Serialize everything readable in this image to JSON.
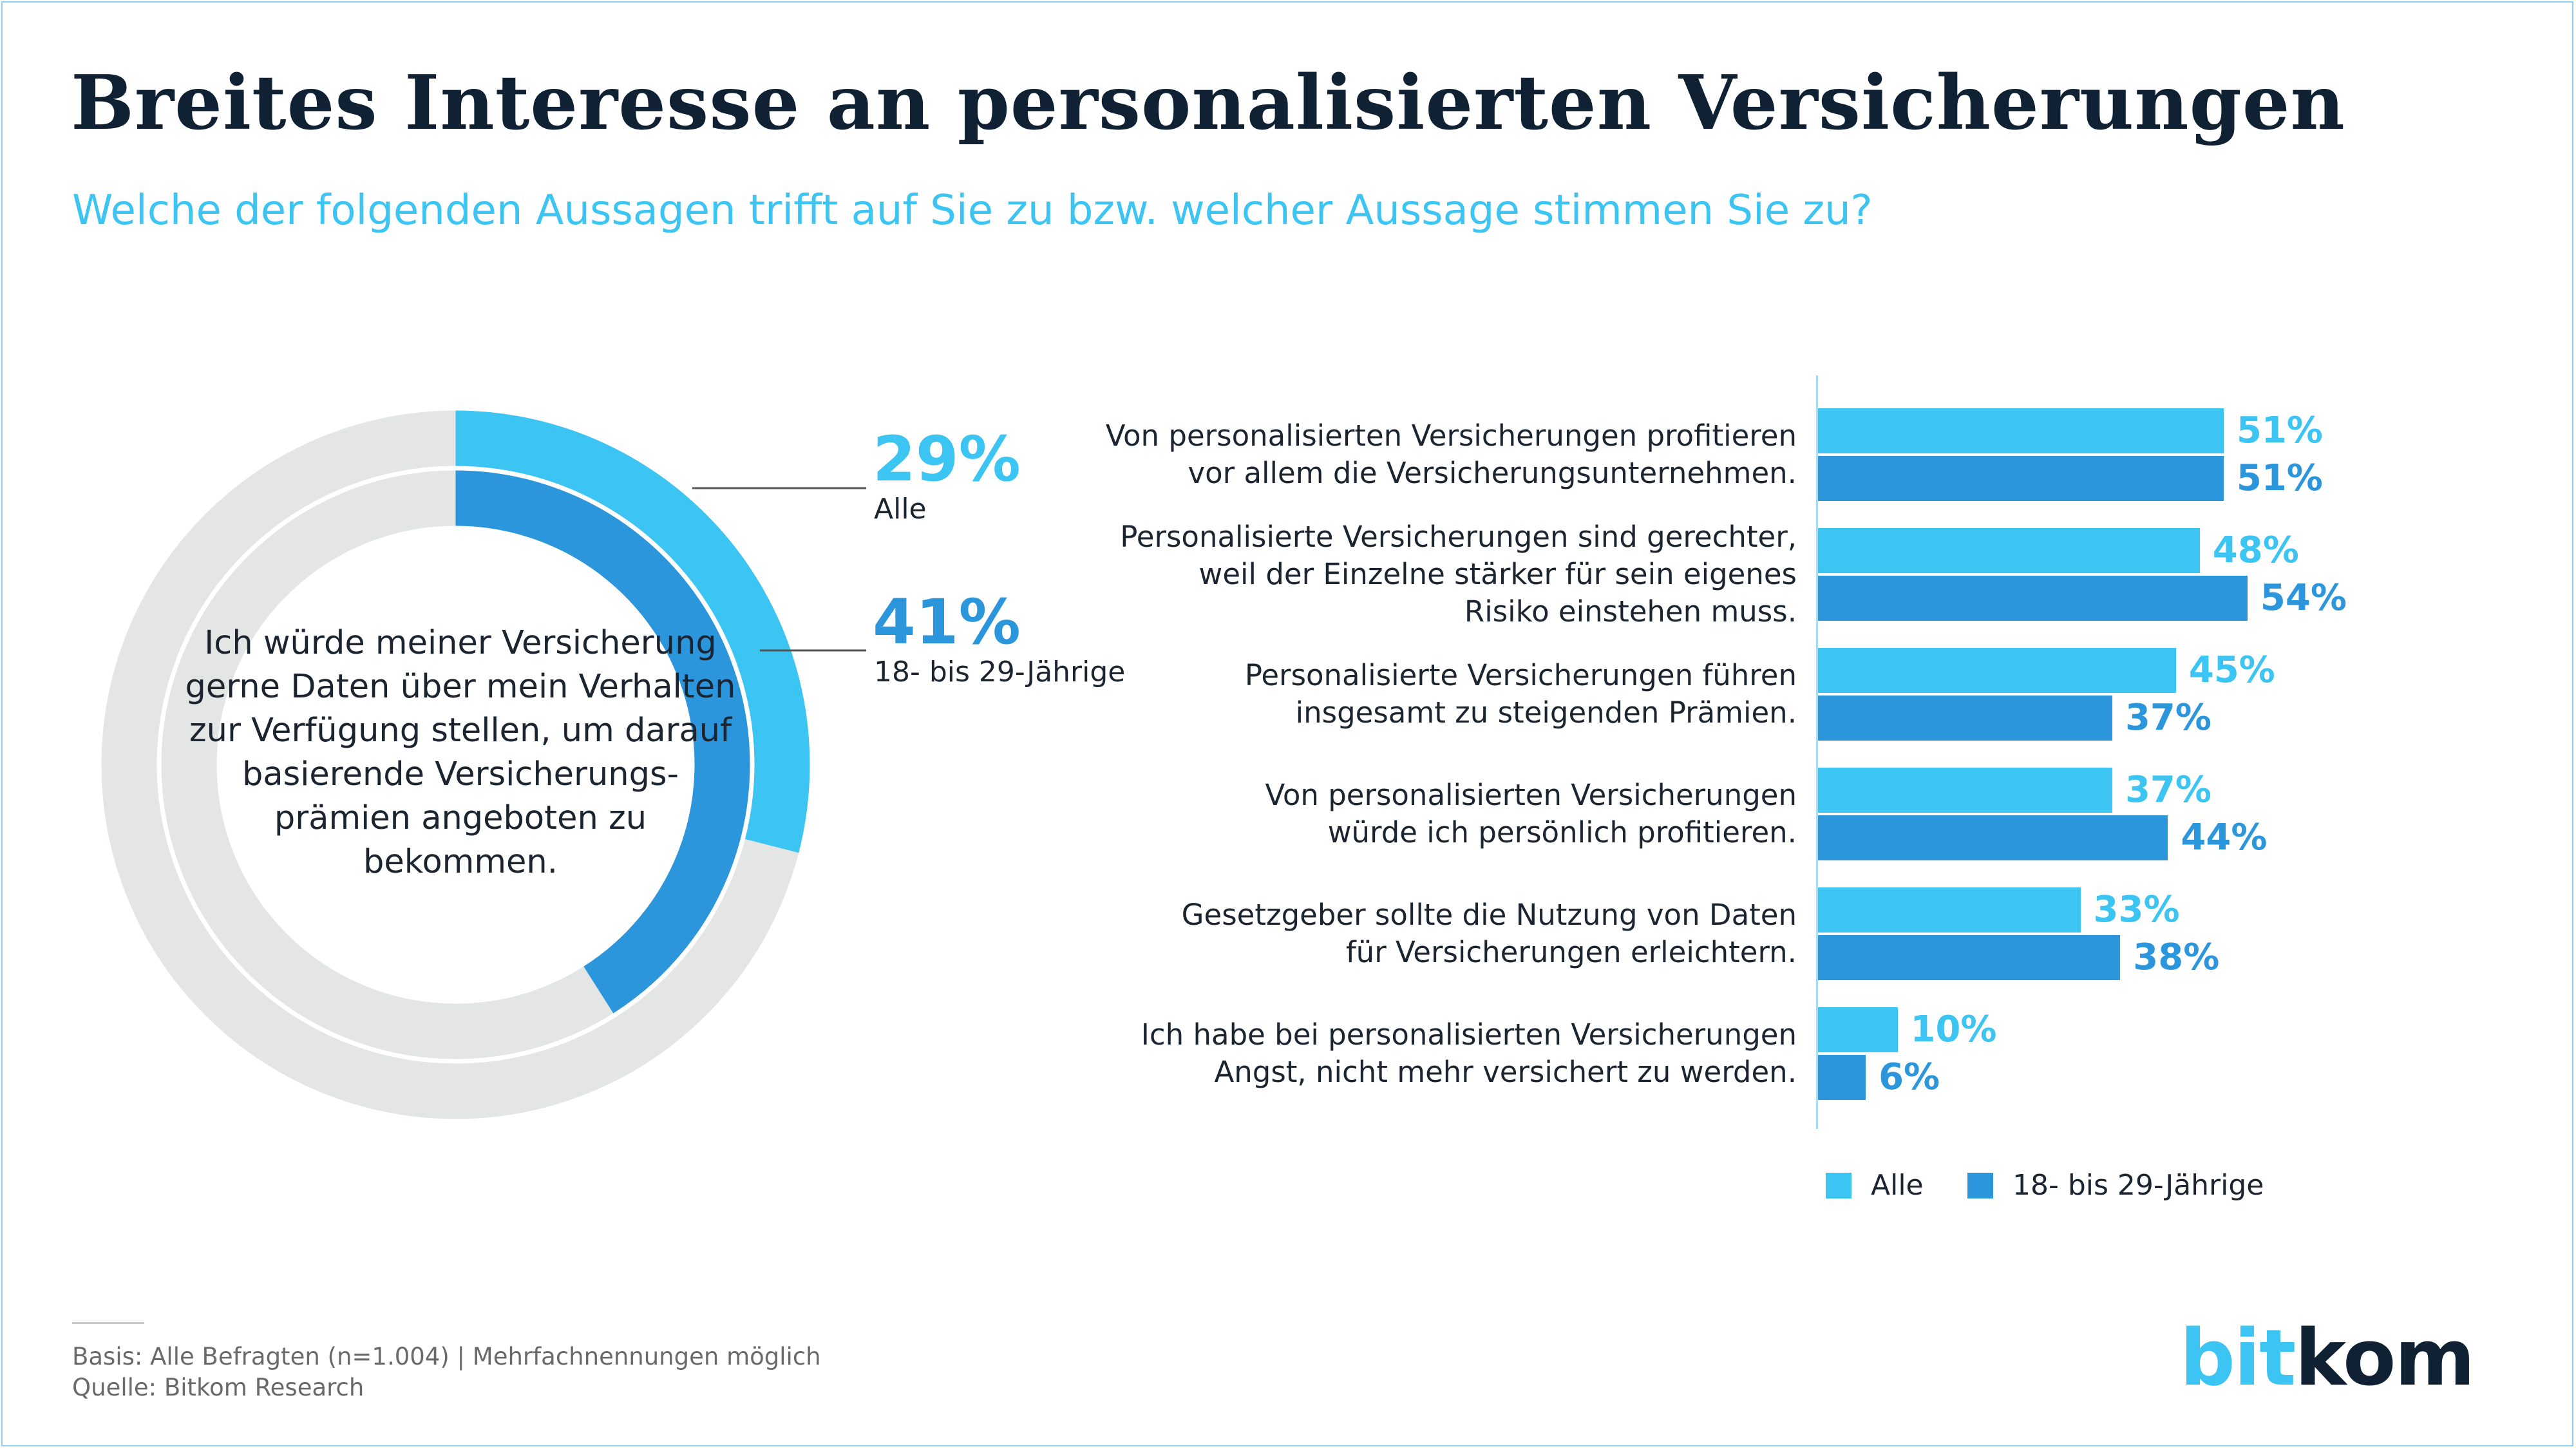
{
  "header": {
    "title": "Breites Interesse an personalisierten Versicherungen",
    "subtitle": "Welche der folgenden Aussagen trifft auf Sie zu bzw. welcher Aussage stimmen Sie zu?"
  },
  "colors": {
    "alle": "#3cc4f2",
    "young": "#2c96dc",
    "track": "#e3e6e5",
    "dark": "#0f2132"
  },
  "donut": {
    "statement": "Ich würde meiner Versicherung gerne Daten über mein Verhalten zur Verfügung stellen, um darauf basierende Versicherungs-prämien angeboten zu bekommen.",
    "outer": {
      "value_label": "29%",
      "name": "Alle"
    },
    "inner": {
      "value_label": "41%",
      "name": "18- bis 29-Jährige"
    }
  },
  "chart_data": [
    {
      "type": "pie",
      "title": "",
      "statement": "Ich würde meiner Versicherung gerne Daten über mein Verhalten zur Verfügung stellen, um darauf basierende Versicherungs-prämien angeboten zu bekommen.",
      "series": [
        {
          "name": "Alle",
          "value": 29
        },
        {
          "name": "18- bis 29-Jährige",
          "value": 41
        }
      ]
    },
    {
      "type": "bar",
      "orientation": "horizontal",
      "title": "",
      "categories": [
        "Von personalisierten Versicherungen profitieren vor allem die Versicherungsunternehmen.",
        "Personalisierte Versicherungen sind gerechter, weil der Einzelne stärker für sein eigenes Risiko einstehen muss.",
        "Personalisierte Versicherungen führen insgesamt zu steigenden Prämien.",
        "Von personalisierten Versicherungen würde ich persönlich profitieren.",
        "Gesetzgeber sollte die Nutzung von Daten für Versicherungen erleichtern.",
        "Ich habe bei personalisierten Versicherungen Angst, nicht mehr versichert zu werden."
      ],
      "category_lines": [
        [
          "Von personalisierten Versicherungen profitieren",
          "vor allem die Versicherungsunternehmen."
        ],
        [
          "Personalisierte Versicherungen sind gerechter,",
          "weil der Einzelne stärker für sein eigenes",
          "Risiko einstehen muss."
        ],
        [
          "Personalisierte Versicherungen führen",
          "insgesamt zu steigenden Prämien."
        ],
        [
          "Von personalisierten Versicherungen",
          "würde ich persönlich profitieren."
        ],
        [
          "Gesetzgeber sollte die Nutzung von Daten",
          "für Versicherungen erleichtern."
        ],
        [
          "Ich habe bei personalisierten Versicherungen",
          "Angst, nicht mehr versichert zu werden."
        ]
      ],
      "series": [
        {
          "name": "Alle",
          "values": [
            51,
            48,
            45,
            37,
            33,
            10
          ]
        },
        {
          "name": "18- bis 29-Jährige",
          "values": [
            51,
            54,
            37,
            44,
            38,
            6
          ]
        }
      ],
      "unit": "%",
      "legend": "bottom"
    }
  ],
  "footer": {
    "basis": "Basis: Alle Befragten (n=1.004) | Mehrfachnennungen möglich",
    "source": "Quelle: Bitkom Research",
    "logo_part1": "bit",
    "logo_part2": "kom"
  }
}
